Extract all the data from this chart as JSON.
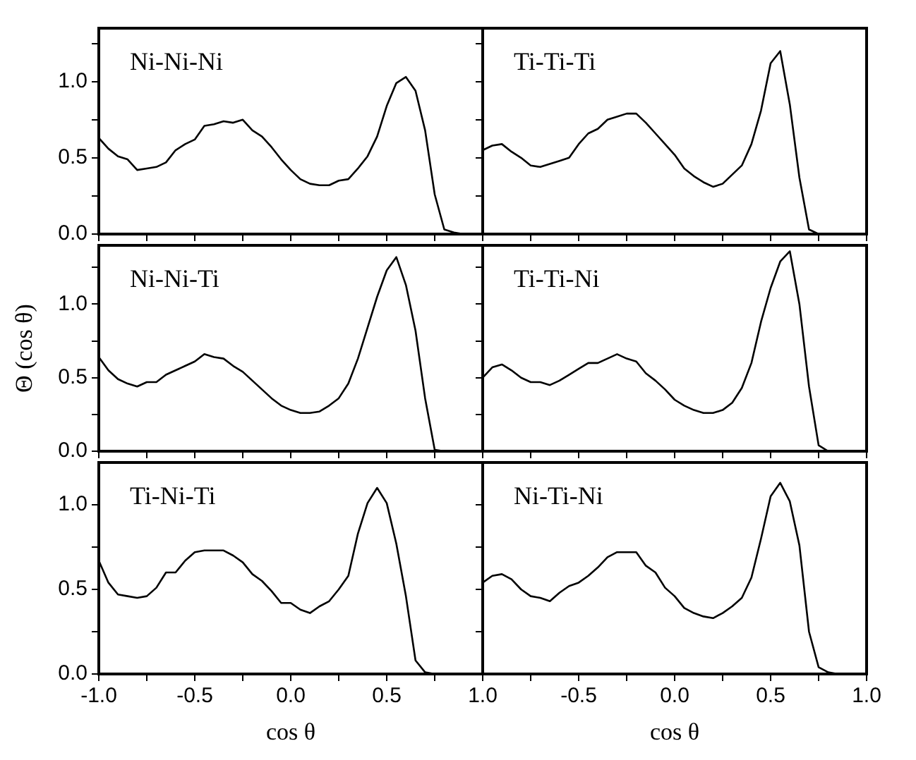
{
  "chart_data": [
    {
      "type": "line",
      "title": "Ni-Ni-Ni",
      "color": "#000000",
      "marker": "none",
      "tick_labels": "y",
      "x": [
        -1,
        -0.95,
        -0.9,
        -0.85,
        -0.8,
        -0.75,
        -0.7,
        -0.65,
        -0.6,
        -0.55,
        -0.5,
        -0.45,
        -0.4,
        -0.35,
        -0.3,
        -0.25,
        -0.2,
        -0.15,
        -0.1,
        -0.05,
        0,
        0.05,
        0.1,
        0.15,
        0.2,
        0.25,
        0.3,
        0.35,
        0.4,
        0.45,
        0.5,
        0.55,
        0.6,
        0.65,
        0.7,
        0.75,
        0.8,
        0.85,
        0.9,
        0.95,
        1
      ],
      "values": [
        0.63,
        0.56,
        0.51,
        0.49,
        0.42,
        0.43,
        0.44,
        0.47,
        0.55,
        0.59,
        0.62,
        0.71,
        0.72,
        0.74,
        0.73,
        0.75,
        0.68,
        0.64,
        0.57,
        0.49,
        0.42,
        0.36,
        0.33,
        0.32,
        0.32,
        0.35,
        0.36,
        0.43,
        0.51,
        0.64,
        0.84,
        0.99,
        1.03,
        0.94,
        0.68,
        0.26,
        0.03,
        0.01,
        0,
        0,
        0
      ],
      "xlim": [
        -1,
        1
      ],
      "xticks": [
        {
          "value": -1,
          "label": null
        },
        {
          "value": -0.75,
          "label": null
        },
        {
          "value": -0.5,
          "label": null
        },
        {
          "value": -0.25,
          "label": null
        },
        {
          "value": 0,
          "label": null
        },
        {
          "value": 0.25,
          "label": null
        },
        {
          "value": 0.5,
          "label": null
        },
        {
          "value": 0.75,
          "label": null
        },
        {
          "value": 1,
          "label": null
        }
      ],
      "ylim": [
        0,
        1.35
      ],
      "yticks": [
        {
          "value": 0,
          "label": "0.0"
        },
        {
          "value": 0.25,
          "label": null
        },
        {
          "value": 0.5,
          "label": "0.5"
        },
        {
          "value": 0.75,
          "label": null
        },
        {
          "value": 1,
          "label": "1.0"
        },
        {
          "value": 1.25,
          "label": null
        }
      ]
    },
    {
      "type": "line",
      "title": "Ti-Ti-Ti",
      "color": "#000000",
      "marker": "none",
      "tick_labels": false,
      "x": [
        -1,
        -0.95,
        -0.9,
        -0.85,
        -0.8,
        -0.75,
        -0.7,
        -0.65,
        -0.6,
        -0.55,
        -0.5,
        -0.45,
        -0.4,
        -0.35,
        -0.3,
        -0.25,
        -0.2,
        -0.15,
        -0.1,
        -0.05,
        0,
        0.05,
        0.1,
        0.15,
        0.2,
        0.25,
        0.3,
        0.35,
        0.4,
        0.45,
        0.5,
        0.55,
        0.6,
        0.65,
        0.7,
        0.75,
        0.8,
        0.85,
        0.9,
        0.95,
        1
      ],
      "values": [
        0.55,
        0.58,
        0.59,
        0.54,
        0.5,
        0.45,
        0.44,
        0.46,
        0.48,
        0.5,
        0.59,
        0.66,
        0.69,
        0.75,
        0.77,
        0.79,
        0.79,
        0.73,
        0.66,
        0.59,
        0.52,
        0.43,
        0.38,
        0.34,
        0.31,
        0.33,
        0.39,
        0.45,
        0.59,
        0.81,
        1.12,
        1.2,
        0.85,
        0.37,
        0.03,
        0,
        0,
        0,
        0,
        0,
        0
      ],
      "xlim": [
        -1,
        1
      ],
      "xticks": [
        {
          "value": -1,
          "label": null
        },
        {
          "value": -0.75,
          "label": null
        },
        {
          "value": -0.5,
          "label": null
        },
        {
          "value": -0.25,
          "label": null
        },
        {
          "value": 0,
          "label": null
        },
        {
          "value": 0.25,
          "label": null
        },
        {
          "value": 0.5,
          "label": null
        },
        {
          "value": 0.75,
          "label": null
        },
        {
          "value": 1,
          "label": null
        }
      ],
      "ylim": [
        0,
        1.35
      ],
      "yticks": [
        {
          "value": 0,
          "label": null
        },
        {
          "value": 0.25,
          "label": null
        },
        {
          "value": 0.5,
          "label": null
        },
        {
          "value": 0.75,
          "label": null
        },
        {
          "value": 1,
          "label": null
        },
        {
          "value": 1.25,
          "label": null
        }
      ]
    },
    {
      "type": "line",
      "title": "Ni-Ni-Ti",
      "ylabel": "Θ (cos θ)",
      "color": "#000000",
      "marker": "none",
      "tick_labels": "y",
      "x": [
        -1,
        -0.95,
        -0.9,
        -0.85,
        -0.8,
        -0.75,
        -0.7,
        -0.65,
        -0.6,
        -0.55,
        -0.5,
        -0.45,
        -0.4,
        -0.35,
        -0.3,
        -0.25,
        -0.2,
        -0.15,
        -0.1,
        -0.05,
        0,
        0.05,
        0.1,
        0.15,
        0.2,
        0.25,
        0.3,
        0.35,
        0.4,
        0.45,
        0.5,
        0.55,
        0.6,
        0.65,
        0.7,
        0.75,
        0.8,
        0.85,
        0.9,
        0.95,
        1
      ],
      "values": [
        0.64,
        0.55,
        0.49,
        0.46,
        0.44,
        0.47,
        0.47,
        0.52,
        0.55,
        0.58,
        0.61,
        0.66,
        0.64,
        0.63,
        0.58,
        0.54,
        0.48,
        0.42,
        0.36,
        0.31,
        0.28,
        0.26,
        0.26,
        0.27,
        0.31,
        0.36,
        0.46,
        0.63,
        0.84,
        1.05,
        1.23,
        1.32,
        1.13,
        0.82,
        0.36,
        0.01,
        0,
        0,
        0,
        0,
        0
      ],
      "xlim": [
        -1,
        1
      ],
      "xticks": [
        {
          "value": -1,
          "label": null
        },
        {
          "value": -0.75,
          "label": null
        },
        {
          "value": -0.5,
          "label": null
        },
        {
          "value": -0.25,
          "label": null
        },
        {
          "value": 0,
          "label": null
        },
        {
          "value": 0.25,
          "label": null
        },
        {
          "value": 0.5,
          "label": null
        },
        {
          "value": 0.75,
          "label": null
        },
        {
          "value": 1,
          "label": null
        }
      ],
      "ylim": [
        0,
        1.4
      ],
      "yticks": [
        {
          "value": 0,
          "label": "0.0"
        },
        {
          "value": 0.25,
          "label": null
        },
        {
          "value": 0.5,
          "label": "0.5"
        },
        {
          "value": 0.75,
          "label": null
        },
        {
          "value": 1,
          "label": "1.0"
        },
        {
          "value": 1.25,
          "label": null
        }
      ]
    },
    {
      "type": "line",
      "title": "Ti-Ti-Ni",
      "color": "#000000",
      "marker": "none",
      "tick_labels": false,
      "x": [
        -1,
        -0.95,
        -0.9,
        -0.85,
        -0.8,
        -0.75,
        -0.7,
        -0.65,
        -0.6,
        -0.55,
        -0.5,
        -0.45,
        -0.4,
        -0.35,
        -0.3,
        -0.25,
        -0.2,
        -0.15,
        -0.1,
        -0.05,
        0,
        0.05,
        0.1,
        0.15,
        0.2,
        0.25,
        0.3,
        0.35,
        0.4,
        0.45,
        0.5,
        0.55,
        0.6,
        0.65,
        0.7,
        0.75,
        0.8,
        0.85,
        0.9,
        0.95,
        1
      ],
      "values": [
        0.5,
        0.57,
        0.59,
        0.55,
        0.5,
        0.47,
        0.47,
        0.45,
        0.48,
        0.52,
        0.56,
        0.6,
        0.6,
        0.63,
        0.66,
        0.63,
        0.61,
        0.53,
        0.48,
        0.42,
        0.35,
        0.31,
        0.28,
        0.26,
        0.26,
        0.28,
        0.33,
        0.43,
        0.6,
        0.88,
        1.11,
        1.29,
        1.36,
        1.0,
        0.44,
        0.04,
        0,
        0,
        0,
        0,
        0
      ],
      "xlim": [
        -1,
        1
      ],
      "xticks": [
        {
          "value": -1,
          "label": null
        },
        {
          "value": -0.75,
          "label": null
        },
        {
          "value": -0.5,
          "label": null
        },
        {
          "value": -0.25,
          "label": null
        },
        {
          "value": 0,
          "label": null
        },
        {
          "value": 0.25,
          "label": null
        },
        {
          "value": 0.5,
          "label": null
        },
        {
          "value": 0.75,
          "label": null
        },
        {
          "value": 1,
          "label": null
        }
      ],
      "ylim": [
        0,
        1.4
      ],
      "yticks": [
        {
          "value": 0,
          "label": null
        },
        {
          "value": 0.25,
          "label": null
        },
        {
          "value": 0.5,
          "label": null
        },
        {
          "value": 0.75,
          "label": null
        },
        {
          "value": 1,
          "label": null
        },
        {
          "value": 1.25,
          "label": null
        }
      ]
    },
    {
      "type": "line",
      "title": "Ti-Ni-Ti",
      "xlabel": "cos θ",
      "color": "#000000",
      "marker": "none",
      "x": [
        -1,
        -0.95,
        -0.9,
        -0.85,
        -0.8,
        -0.75,
        -0.7,
        -0.65,
        -0.6,
        -0.55,
        -0.5,
        -0.45,
        -0.4,
        -0.35,
        -0.3,
        -0.25,
        -0.2,
        -0.15,
        -0.1,
        -0.05,
        0,
        0.05,
        0.1,
        0.15,
        0.2,
        0.25,
        0.3,
        0.35,
        0.4,
        0.45,
        0.5,
        0.55,
        0.6,
        0.65,
        0.7,
        0.75,
        0.8,
        0.85,
        0.9,
        0.95,
        1
      ],
      "values": [
        0.67,
        0.54,
        0.47,
        0.46,
        0.45,
        0.46,
        0.51,
        0.6,
        0.6,
        0.67,
        0.72,
        0.73,
        0.73,
        0.73,
        0.7,
        0.66,
        0.59,
        0.55,
        0.49,
        0.42,
        0.42,
        0.38,
        0.36,
        0.4,
        0.43,
        0.5,
        0.58,
        0.83,
        1.01,
        1.1,
        1.01,
        0.77,
        0.46,
        0.08,
        0.01,
        0,
        0,
        0,
        0,
        0,
        0
      ],
      "xlim": [
        -1,
        1
      ],
      "xticks": [
        {
          "value": -1,
          "label": "-1.0"
        },
        {
          "value": -0.75,
          "label": null
        },
        {
          "value": -0.5,
          "label": "-0.5"
        },
        {
          "value": -0.25,
          "label": null
        },
        {
          "value": 0,
          "label": "0.0"
        },
        {
          "value": 0.25,
          "label": null
        },
        {
          "value": 0.5,
          "label": "0.5"
        },
        {
          "value": 0.75,
          "label": null
        },
        {
          "value": 1,
          "label": "1.0"
        }
      ],
      "ylim": [
        0,
        1.25
      ],
      "yticks": [
        {
          "value": 0,
          "label": "0.0"
        },
        {
          "value": 0.25,
          "label": null
        },
        {
          "value": 0.5,
          "label": "0.5"
        },
        {
          "value": 0.75,
          "label": null
        },
        {
          "value": 1,
          "label": "1.0"
        }
      ]
    },
    {
      "type": "line",
      "title": "Ni-Ti-Ni",
      "xlabel": "cos θ",
      "color": "#000000",
      "marker": "none",
      "tick_labels": "x",
      "x": [
        -1,
        -0.95,
        -0.9,
        -0.85,
        -0.8,
        -0.75,
        -0.7,
        -0.65,
        -0.6,
        -0.55,
        -0.5,
        -0.45,
        -0.4,
        -0.35,
        -0.3,
        -0.25,
        -0.2,
        -0.15,
        -0.1,
        -0.05,
        0,
        0.05,
        0.1,
        0.15,
        0.2,
        0.25,
        0.3,
        0.35,
        0.4,
        0.45,
        0.5,
        0.55,
        0.6,
        0.65,
        0.7,
        0.75,
        0.8,
        0.85,
        0.9,
        0.95,
        1
      ],
      "values": [
        0.54,
        0.58,
        0.59,
        0.56,
        0.5,
        0.46,
        0.45,
        0.43,
        0.48,
        0.52,
        0.54,
        0.58,
        0.63,
        0.69,
        0.72,
        0.72,
        0.72,
        0.64,
        0.6,
        0.51,
        0.46,
        0.39,
        0.36,
        0.34,
        0.33,
        0.36,
        0.4,
        0.45,
        0.57,
        0.8,
        1.05,
        1.13,
        1.02,
        0.76,
        0.25,
        0.04,
        0.01,
        0,
        0,
        0,
        0
      ],
      "xlim": [
        -1,
        1
      ],
      "xticks": [
        {
          "value": -1,
          "label": null
        },
        {
          "value": -0.75,
          "label": null
        },
        {
          "value": -0.5,
          "label": "-0.5"
        },
        {
          "value": -0.25,
          "label": null
        },
        {
          "value": 0,
          "label": "0.0"
        },
        {
          "value": 0.25,
          "label": null
        },
        {
          "value": 0.5,
          "label": "0.5"
        },
        {
          "value": 0.75,
          "label": null
        },
        {
          "value": 1,
          "label": "1.0"
        }
      ],
      "ylim": [
        0,
        1.25
      ],
      "yticks": [
        {
          "value": 0,
          "label": null
        },
        {
          "value": 0.25,
          "label": null
        },
        {
          "value": 0.5,
          "label": null
        },
        {
          "value": 0.75,
          "label": null
        },
        {
          "value": 1,
          "label": null
        }
      ]
    }
  ]
}
